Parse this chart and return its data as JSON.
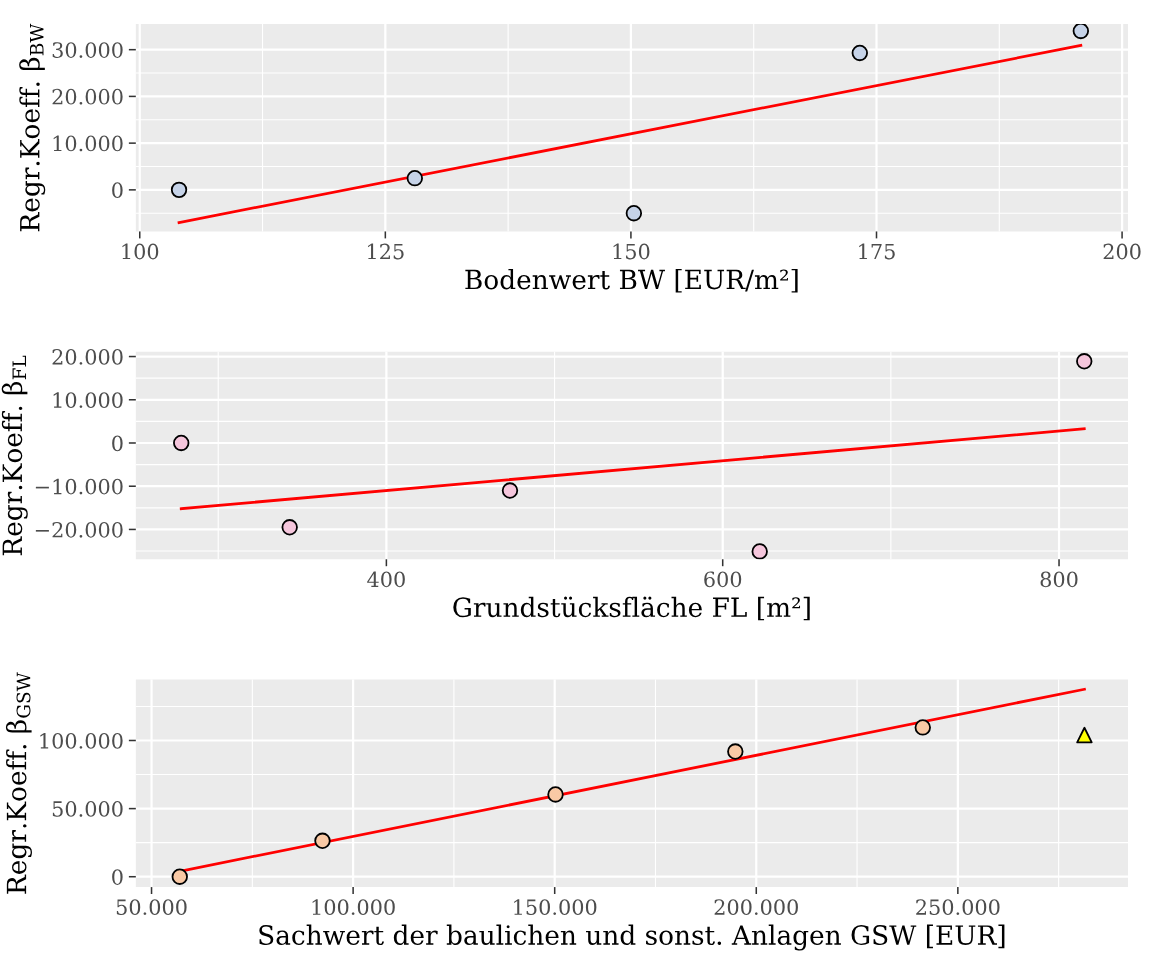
{
  "chart_data": [
    {
      "type": "scatter",
      "xlabel": "Bodenwert BW [EUR/m²]",
      "ylabel": "Regr.Koeff. β$_{BW}$",
      "grid": true,
      "legend": false,
      "xlim": [
        99.6,
        200.6
      ],
      "xticks": [
        100,
        {
          "value": 112.5,
          "label": null
        },
        125,
        {
          "value": 137.5,
          "label": null
        },
        150,
        {
          "value": 162.5,
          "label": null
        },
        175,
        {
          "value": 187.5,
          "label": null
        },
        200
      ],
      "ylim": [
        -8900,
        35500
      ],
      "yticks": [
        {
          "value": -5000,
          "label": null
        },
        {
          "value": 0,
          "label": "0"
        },
        {
          "value": 5000,
          "label": null
        },
        {
          "value": 10000,
          "label": "10.000"
        },
        {
          "value": 15000,
          "label": null
        },
        {
          "value": 20000,
          "label": "20.000"
        },
        {
          "value": 25000,
          "label": null
        },
        {
          "value": 30000,
          "label": "30.000"
        }
      ],
      "series": [
        {
          "marker": "circle",
          "color": "#c6d3e8",
          "x": [
            104.0,
            128.0,
            150.3,
            173.3,
            195.8
          ],
          "values": [
            0,
            2500,
            -5000,
            29300,
            34000
          ]
        },
        {
          "type": "line",
          "color": "#ff0000",
          "x": [
            104.0,
            195.8
          ],
          "values": [
            -7000,
            30900
          ]
        }
      ]
    },
    {
      "type": "scatter",
      "xlabel": "Grundstücksfläche FL [m²]",
      "ylabel": "Regr.Koeff. β$_{FL}$",
      "grid": true,
      "legend": false,
      "xlim": [
        251,
        841
      ],
      "xticks": [
        {
          "value": 300,
          "label": null
        },
        400,
        {
          "value": 500,
          "label": null
        },
        600,
        {
          "value": 700,
          "label": null
        },
        800
      ],
      "ylim": [
        -26900,
        21100
      ],
      "yticks": [
        {
          "value": -25000,
          "label": null
        },
        {
          "value": -20000,
          "label": "−20.000"
        },
        {
          "value": -15000,
          "label": null
        },
        {
          "value": -10000,
          "label": "−10.000"
        },
        {
          "value": -5000,
          "label": null
        },
        {
          "value": 0,
          "label": "0"
        },
        {
          "value": 5000,
          "label": null
        },
        {
          "value": 10000,
          "label": "10.000"
        },
        {
          "value": 15000,
          "label": null
        },
        {
          "value": 20000,
          "label": "20.000"
        }
      ],
      "series": [
        {
          "marker": "circle",
          "color": "#f5c6dc",
          "x": [
            278,
            342.5,
            473.5,
            622,
            815
          ],
          "values": [
            0,
            -19500,
            -11000,
            -25100,
            18900
          ]
        },
        {
          "type": "line",
          "color": "#ff0000",
          "x": [
            278,
            815
          ],
          "values": [
            -15200,
            3300
          ]
        }
      ]
    },
    {
      "type": "scatter",
      "xlabel": "Sachwert der baulichen und sonst. Anlagen GSW [EUR]",
      "ylabel": "Regr.Koeff. β$_{GSW}$",
      "grid": true,
      "legend": false,
      "xlim": [
        46100,
        292200
      ],
      "xticks": [
        {
          "value": 50000,
          "label": "50.000"
        },
        {
          "value": 75000,
          "label": null
        },
        {
          "value": 100000,
          "label": "100.000"
        },
        {
          "value": 125000,
          "label": null
        },
        {
          "value": 150000,
          "label": "150.000"
        },
        {
          "value": 175000,
          "label": null
        },
        {
          "value": 200000,
          "label": "200.000"
        },
        {
          "value": 225000,
          "label": null
        },
        {
          "value": 250000,
          "label": "250.000"
        },
        {
          "value": 275000,
          "label": null
        }
      ],
      "ylim": [
        -7600,
        144700
      ],
      "yticks": [
        {
          "value": 0,
          "label": "0"
        },
        {
          "value": 25000,
          "label": null
        },
        {
          "value": 50000,
          "label": "50.000"
        },
        {
          "value": 75000,
          "label": null
        },
        {
          "value": 100000,
          "label": "100.000"
        },
        {
          "value": 125000,
          "label": null
        }
      ],
      "series": [
        {
          "marker": "circle",
          "color": "#f9c9a5",
          "x": [
            57000,
            92400,
            150200,
            194800,
            241300
          ],
          "values": [
            0,
            26400,
            60400,
            91900,
            109600
          ]
        },
        {
          "marker": "triangle",
          "color": "#ffff00",
          "x": [
            281400
          ],
          "values": [
            104000
          ]
        },
        {
          "type": "line",
          "color": "#ff0000",
          "x": [
            57000,
            281400
          ],
          "values": [
            4000,
            137600
          ]
        }
      ]
    }
  ]
}
